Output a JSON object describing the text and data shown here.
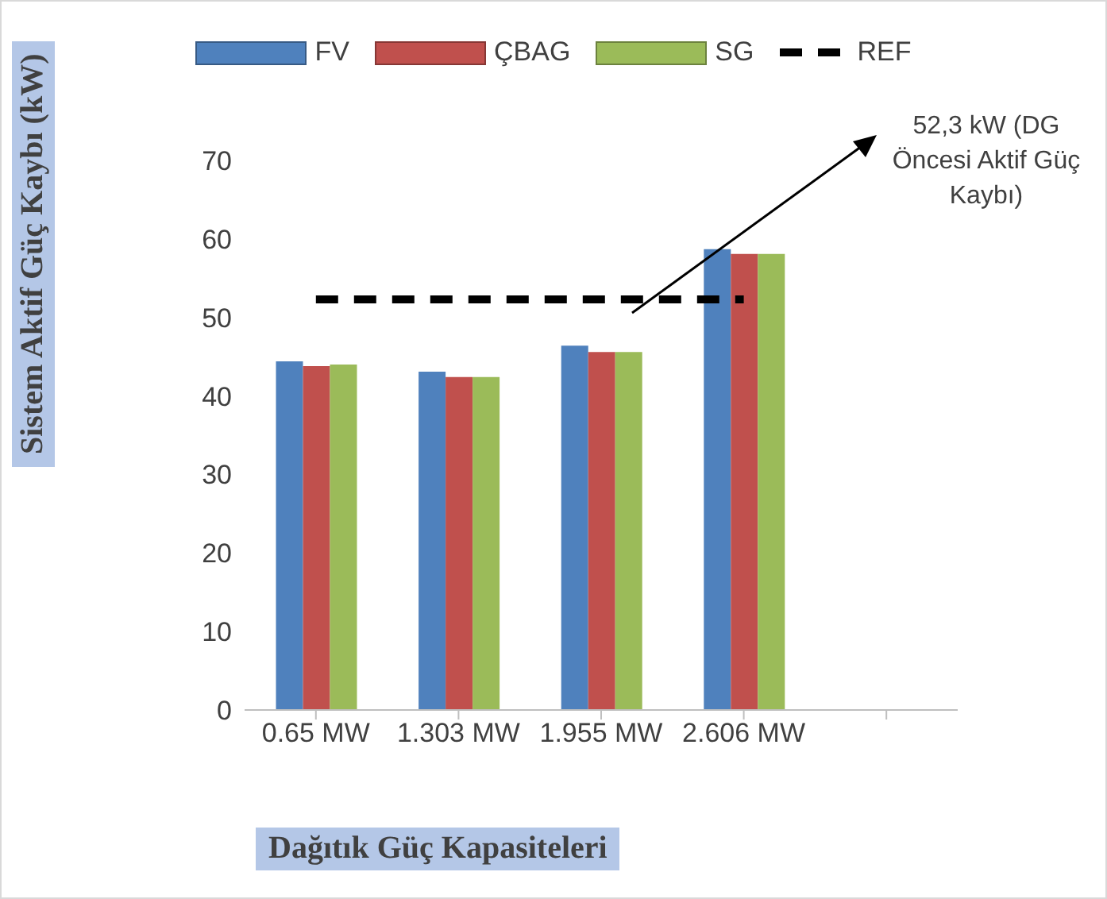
{
  "chart_data": {
    "type": "bar",
    "xlabel": "Dağıtık Güç Kapasiteleri",
    "ylabel": "Sistem Aktif Güç Kaybı (kW)",
    "categories": [
      "0.65 MW",
      "1.303 MW",
      "1.955 MW",
      "2.606 MW",
      null
    ],
    "series": [
      {
        "name": "FV",
        "color": "#4f81bd",
        "values": [
          44.4,
          43.1,
          46.4,
          58.7,
          null
        ]
      },
      {
        "name": "ÇBAG",
        "color": "#c0504d",
        "values": [
          43.8,
          42.4,
          45.6,
          58.1,
          null
        ]
      },
      {
        "name": "SG",
        "color": "#9bbb59",
        "values": [
          44.0,
          42.4,
          45.6,
          58.1,
          null
        ]
      },
      {
        "name": "REF",
        "type": "line",
        "color": "#000000",
        "line_style": "dashed",
        "marker": "none",
        "values": [
          52.3,
          52.3,
          52.3,
          52.3,
          null
        ]
      }
    ],
    "ylim": [
      0,
      70
    ],
    "yticks": [
      0,
      10,
      20,
      30,
      40,
      50,
      60,
      70
    ],
    "grid": false,
    "legend": "top",
    "annotations": [
      "52,3 kW (DG Öncesi Aktif Güç Kaybı)"
    ]
  }
}
